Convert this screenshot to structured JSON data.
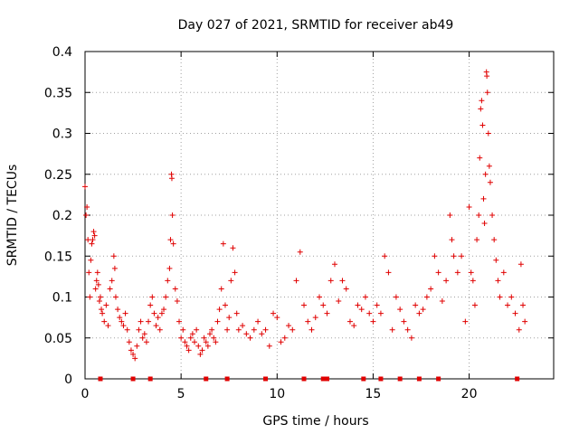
{
  "chart_data": {
    "type": "scatter",
    "title": "Day 027 of 2021, SRMTID for receiver ab49",
    "xlabel": "GPS time / hours",
    "ylabel": "SRMTID / TECUs",
    "xlim": [
      0,
      24.4
    ],
    "ylim": [
      0,
      0.4
    ],
    "x_ticks": [
      0,
      5,
      10,
      15,
      20
    ],
    "x_tick_labels": [
      "0",
      "5",
      "10",
      "15",
      "20"
    ],
    "y_ticks": [
      0,
      0.05,
      0.1,
      0.15,
      0.2,
      0.25,
      0.3,
      0.35,
      0.4
    ],
    "y_tick_labels": [
      "0",
      "0.05",
      "0.1",
      "0.15",
      "0.2",
      "0.25",
      "0.3",
      "0.35",
      "0.4"
    ],
    "grid": true,
    "colors": {
      "series": "#e00000",
      "grid": "#a0a0a0",
      "axes": "#000000"
    },
    "series": [
      {
        "name": "SRMTID",
        "marker": "+",
        "points": [
          [
            0.0,
            0.235
          ],
          [
            0.05,
            0.2
          ],
          [
            0.1,
            0.21
          ],
          [
            0.15,
            0.17
          ],
          [
            0.2,
            0.13
          ],
          [
            0.25,
            0.1
          ],
          [
            0.3,
            0.145
          ],
          [
            0.35,
            0.165
          ],
          [
            0.4,
            0.17
          ],
          [
            0.45,
            0.18
          ],
          [
            0.5,
            0.175
          ],
          [
            0.55,
            0.11
          ],
          [
            0.6,
            0.12
          ],
          [
            0.65,
            0.13
          ],
          [
            0.7,
            0.115
          ],
          [
            0.75,
            0.095
          ],
          [
            0.8,
            0.1
          ],
          [
            0.85,
            0.085
          ],
          [
            0.9,
            0.08
          ],
          [
            1.0,
            0.07
          ],
          [
            1.1,
            0.09
          ],
          [
            1.2,
            0.065
          ],
          [
            1.3,
            0.11
          ],
          [
            1.4,
            0.12
          ],
          [
            1.5,
            0.15
          ],
          [
            1.55,
            0.135
          ],
          [
            1.6,
            0.1
          ],
          [
            1.7,
            0.085
          ],
          [
            1.8,
            0.075
          ],
          [
            1.9,
            0.07
          ],
          [
            2.0,
            0.065
          ],
          [
            2.1,
            0.08
          ],
          [
            2.2,
            0.06
          ],
          [
            2.3,
            0.045
          ],
          [
            2.4,
            0.035
          ],
          [
            2.5,
            0.03
          ],
          [
            2.6,
            0.025
          ],
          [
            2.7,
            0.04
          ],
          [
            2.8,
            0.06
          ],
          [
            2.9,
            0.07
          ],
          [
            3.0,
            0.05
          ],
          [
            3.1,
            0.055
          ],
          [
            3.2,
            0.045
          ],
          [
            3.3,
            0.07
          ],
          [
            3.4,
            0.09
          ],
          [
            3.5,
            0.1
          ],
          [
            3.6,
            0.08
          ],
          [
            3.7,
            0.065
          ],
          [
            3.8,
            0.075
          ],
          [
            3.9,
            0.06
          ],
          [
            4.0,
            0.08
          ],
          [
            4.1,
            0.085
          ],
          [
            4.2,
            0.1
          ],
          [
            4.3,
            0.12
          ],
          [
            4.4,
            0.135
          ],
          [
            4.45,
            0.17
          ],
          [
            4.5,
            0.25
          ],
          [
            4.52,
            0.245
          ],
          [
            4.55,
            0.2
          ],
          [
            4.6,
            0.165
          ],
          [
            4.7,
            0.11
          ],
          [
            4.8,
            0.095
          ],
          [
            4.9,
            0.07
          ],
          [
            5.0,
            0.05
          ],
          [
            5.1,
            0.06
          ],
          [
            5.2,
            0.045
          ],
          [
            5.3,
            0.04
          ],
          [
            5.4,
            0.035
          ],
          [
            5.5,
            0.05
          ],
          [
            5.6,
            0.055
          ],
          [
            5.7,
            0.045
          ],
          [
            5.8,
            0.06
          ],
          [
            5.9,
            0.04
          ],
          [
            6.0,
            0.03
          ],
          [
            6.1,
            0.035
          ],
          [
            6.2,
            0.05
          ],
          [
            6.3,
            0.045
          ],
          [
            6.4,
            0.04
          ],
          [
            6.5,
            0.055
          ],
          [
            6.6,
            0.06
          ],
          [
            6.7,
            0.05
          ],
          [
            6.8,
            0.045
          ],
          [
            6.9,
            0.07
          ],
          [
            7.0,
            0.085
          ],
          [
            7.1,
            0.11
          ],
          [
            7.2,
            0.165
          ],
          [
            7.3,
            0.09
          ],
          [
            7.4,
            0.06
          ],
          [
            7.5,
            0.075
          ],
          [
            7.6,
            0.12
          ],
          [
            7.7,
            0.16
          ],
          [
            7.8,
            0.13
          ],
          [
            7.9,
            0.08
          ],
          [
            8.0,
            0.06
          ],
          [
            8.2,
            0.065
          ],
          [
            8.4,
            0.055
          ],
          [
            8.6,
            0.05
          ],
          [
            8.8,
            0.06
          ],
          [
            9.0,
            0.07
          ],
          [
            9.2,
            0.055
          ],
          [
            9.4,
            0.06
          ],
          [
            9.6,
            0.04
          ],
          [
            9.8,
            0.08
          ],
          [
            10.0,
            0.075
          ],
          [
            10.2,
            0.045
          ],
          [
            10.4,
            0.05
          ],
          [
            10.6,
            0.065
          ],
          [
            10.8,
            0.06
          ],
          [
            11.0,
            0.12
          ],
          [
            11.2,
            0.155
          ],
          [
            11.4,
            0.09
          ],
          [
            11.6,
            0.07
          ],
          [
            11.8,
            0.06
          ],
          [
            12.0,
            0.075
          ],
          [
            12.2,
            0.1
          ],
          [
            12.4,
            0.09
          ],
          [
            12.6,
            0.08
          ],
          [
            12.8,
            0.12
          ],
          [
            13.0,
            0.14
          ],
          [
            13.2,
            0.095
          ],
          [
            13.4,
            0.12
          ],
          [
            13.6,
            0.11
          ],
          [
            13.8,
            0.07
          ],
          [
            14.0,
            0.065
          ],
          [
            14.2,
            0.09
          ],
          [
            14.4,
            0.085
          ],
          [
            14.6,
            0.1
          ],
          [
            14.8,
            0.08
          ],
          [
            15.0,
            0.07
          ],
          [
            15.2,
            0.09
          ],
          [
            15.4,
            0.08
          ],
          [
            15.6,
            0.15
          ],
          [
            15.8,
            0.13
          ],
          [
            16.0,
            0.06
          ],
          [
            16.2,
            0.1
          ],
          [
            16.4,
            0.085
          ],
          [
            16.6,
            0.07
          ],
          [
            16.8,
            0.06
          ],
          [
            17.0,
            0.05
          ],
          [
            17.2,
            0.09
          ],
          [
            17.4,
            0.08
          ],
          [
            17.6,
            0.085
          ],
          [
            17.8,
            0.1
          ],
          [
            18.0,
            0.11
          ],
          [
            18.2,
            0.15
          ],
          [
            18.4,
            0.13
          ],
          [
            18.6,
            0.095
          ],
          [
            18.8,
            0.12
          ],
          [
            19.0,
            0.2
          ],
          [
            19.1,
            0.17
          ],
          [
            19.2,
            0.15
          ],
          [
            19.4,
            0.13
          ],
          [
            19.6,
            0.15
          ],
          [
            19.8,
            0.07
          ],
          [
            20.0,
            0.21
          ],
          [
            20.1,
            0.13
          ],
          [
            20.2,
            0.12
          ],
          [
            20.3,
            0.09
          ],
          [
            20.4,
            0.17
          ],
          [
            20.5,
            0.2
          ],
          [
            20.55,
            0.27
          ],
          [
            20.6,
            0.33
          ],
          [
            20.65,
            0.34
          ],
          [
            20.7,
            0.31
          ],
          [
            20.75,
            0.22
          ],
          [
            20.8,
            0.19
          ],
          [
            20.85,
            0.25
          ],
          [
            20.9,
            0.375
          ],
          [
            20.92,
            0.37
          ],
          [
            20.95,
            0.35
          ],
          [
            21.0,
            0.3
          ],
          [
            21.05,
            0.26
          ],
          [
            21.1,
            0.24
          ],
          [
            21.2,
            0.2
          ],
          [
            21.3,
            0.17
          ],
          [
            21.4,
            0.145
          ],
          [
            21.5,
            0.12
          ],
          [
            21.6,
            0.1
          ],
          [
            21.8,
            0.13
          ],
          [
            22.0,
            0.09
          ],
          [
            22.2,
            0.1
          ],
          [
            22.4,
            0.08
          ],
          [
            22.6,
            0.06
          ],
          [
            22.7,
            0.14
          ],
          [
            22.8,
            0.09
          ],
          [
            22.9,
            0.07
          ]
        ]
      }
    ],
    "outage_markers": {
      "y": 0,
      "x": [
        0.8,
        2.5,
        3.4,
        6.3,
        7.4,
        9.4,
        11.4,
        12.4,
        12.6,
        14.5,
        15.4,
        16.4,
        17.4,
        18.4,
        22.5
      ]
    }
  }
}
